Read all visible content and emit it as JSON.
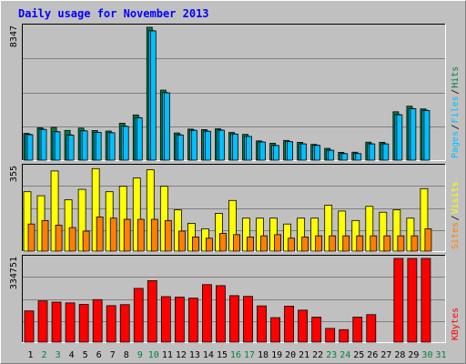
{
  "title": "Daily usage for November 2013",
  "colors": {
    "hits": "#008040",
    "files": "#00c0ff",
    "pages": "#00c0ff",
    "visits": "#ffff00",
    "sites": "#ff8000",
    "kbytes": "#ff0000",
    "weekend_label": "#008040",
    "weekday_label": "#000000"
  },
  "chart_data": [
    {
      "type": "bar",
      "title": "Daily usage for November 2013",
      "categories": [
        "1",
        "2",
        "3",
        "4",
        "5",
        "6",
        "7",
        "8",
        "9",
        "10",
        "11",
        "12",
        "13",
        "14",
        "15",
        "16",
        "17",
        "18",
        "19",
        "20",
        "21",
        "22",
        "23",
        "24",
        "25",
        "26",
        "27",
        "28",
        "29",
        "30",
        "31"
      ],
      "weekend_days": [
        "2",
        "3",
        "9",
        "10",
        "16",
        "17",
        "23",
        "24",
        "30",
        "31"
      ],
      "ymax_label": "8347",
      "ylim": [
        0,
        8347
      ],
      "legend": [
        "Pages",
        "Files",
        "Hits"
      ],
      "legend_separator": "/",
      "series": [
        {
          "name": "Hits",
          "values": [
            1680,
            2030,
            2060,
            1870,
            2010,
            1860,
            1830,
            2320,
            2840,
            8347,
            4400,
            1710,
            1950,
            1920,
            1970,
            1740,
            1620,
            1210,
            1060,
            1240,
            1120,
            990,
            740,
            490,
            500,
            1130,
            1120,
            3040,
            3390,
            3220,
            0
          ]
        },
        {
          "name": "Files",
          "values": [
            1630,
            1950,
            1800,
            1590,
            1850,
            1750,
            1730,
            2140,
            2680,
            8140,
            4250,
            1600,
            1890,
            1830,
            1900,
            1650,
            1500,
            1150,
            930,
            1170,
            1030,
            940,
            630,
            420,
            420,
            1030,
            1030,
            2870,
            3250,
            3140,
            0
          ]
        },
        {
          "name": "Pages",
          "values": [
            1600,
            1930,
            1780,
            1570,
            1840,
            1740,
            1720,
            2120,
            2660,
            8120,
            4230,
            1580,
            1870,
            1810,
            1880,
            1640,
            1490,
            1140,
            920,
            1160,
            1020,
            930,
            620,
            410,
            410,
            1020,
            1020,
            2850,
            3230,
            3120,
            0
          ]
        }
      ]
    },
    {
      "type": "bar",
      "categories": [
        "1",
        "2",
        "3",
        "4",
        "5",
        "6",
        "7",
        "8",
        "9",
        "10",
        "11",
        "12",
        "13",
        "14",
        "15",
        "16",
        "17",
        "18",
        "19",
        "20",
        "21",
        "22",
        "23",
        "24",
        "25",
        "26",
        "27",
        "28",
        "29",
        "30",
        "31"
      ],
      "ymax_label": "355",
      "ylim": [
        0,
        355
      ],
      "legend": [
        "Sites",
        "Visits"
      ],
      "legend_separator": "/",
      "series": [
        {
          "name": "Visits",
          "values": [
            252,
            235,
            340,
            218,
            262,
            350,
            252,
            275,
            310,
            345,
            275,
            175,
            118,
            95,
            160,
            215,
            140,
            140,
            140,
            115,
            140,
            140,
            195,
            170,
            130,
            190,
            165,
            175,
            140,
            265,
            0
          ]
        },
        {
          "name": "Sites",
          "values": [
            115,
            130,
            110,
            100,
            85,
            145,
            140,
            135,
            135,
            135,
            130,
            85,
            60,
            55,
            75,
            70,
            60,
            65,
            70,
            55,
            60,
            65,
            65,
            65,
            65,
            65,
            65,
            65,
            65,
            95,
            0
          ]
        }
      ]
    },
    {
      "type": "bar",
      "categories": [
        "1",
        "2",
        "3",
        "4",
        "5",
        "6",
        "7",
        "8",
        "9",
        "10",
        "11",
        "12",
        "13",
        "14",
        "15",
        "16",
        "17",
        "18",
        "19",
        "20",
        "21",
        "22",
        "23",
        "24",
        "25",
        "26",
        "27",
        "28",
        "29",
        "30",
        "31"
      ],
      "ymax_label": "334751",
      "ylim": [
        0,
        334751
      ],
      "legend": [
        "KBytes"
      ],
      "series": [
        {
          "name": "KBytes",
          "values": [
            125000,
            165000,
            160000,
            157000,
            151000,
            170000,
            146000,
            150000,
            215000,
            246000,
            182000,
            180000,
            176000,
            230000,
            226000,
            186000,
            183000,
            145000,
            98000,
            144000,
            128000,
            100000,
            55000,
            50000,
            100000,
            110000,
            0,
            334751,
            334751,
            334751,
            0
          ]
        }
      ]
    }
  ]
}
